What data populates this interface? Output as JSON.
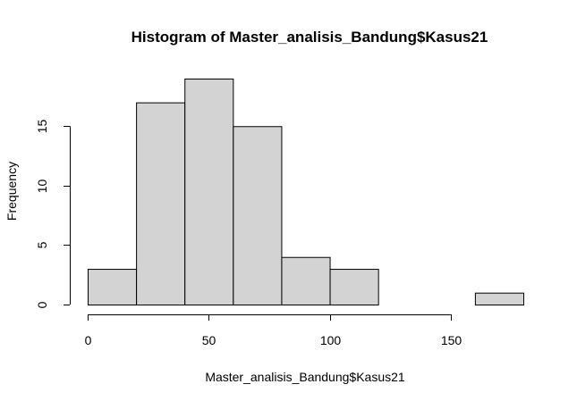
{
  "chart_data": {
    "type": "bar",
    "subtype": "histogram",
    "title": "Histogram of Master_analisis_Bandung$Kasus21",
    "xlabel": "Master_analisis_Bandung$Kasus21",
    "ylabel": "Frequency",
    "bin_edges": [
      0,
      20,
      40,
      60,
      80,
      100,
      120,
      140,
      160,
      180
    ],
    "values": [
      3,
      17,
      19,
      15,
      4,
      3,
      0,
      0,
      1
    ],
    "xlim": [
      0,
      180
    ],
    "ylim": [
      0,
      19
    ],
    "x_ticks": [
      0,
      50,
      100,
      150
    ],
    "y_ticks": [
      0,
      5,
      10,
      15
    ],
    "bar_color": "#d3d3d3",
    "grid": false
  }
}
